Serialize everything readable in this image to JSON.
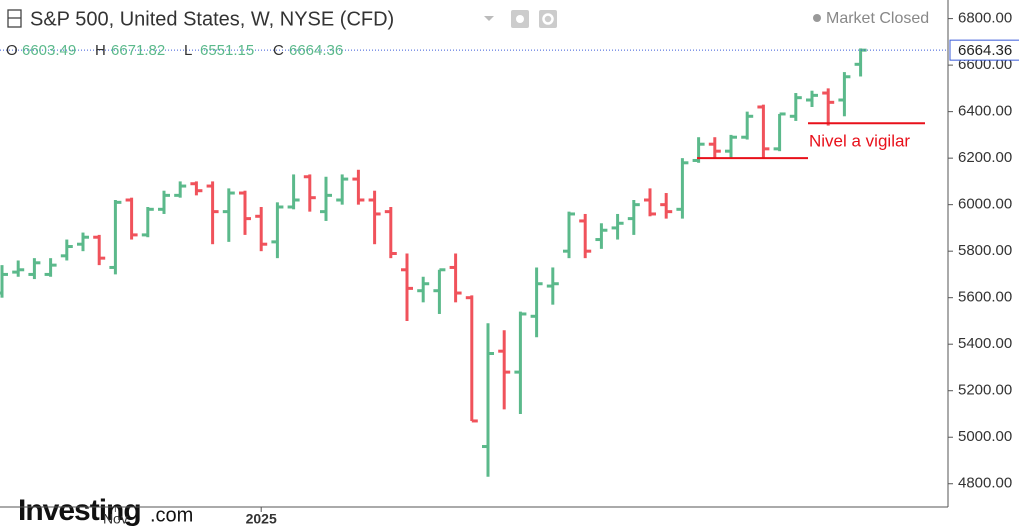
{
  "chart_data": {
    "type": "ohlc",
    "title": "S&P 500, United States, W, NYSE (CFD)",
    "status": "Market Closed",
    "ohlc_labels": [
      "O",
      "H",
      "L",
      "C"
    ],
    "logo": "Investing",
    "logo_suffix": ".com",
    "annotation": "Nivel a vigilar",
    "levels": [
      6350,
      6200
    ],
    "level_color": "#e8101a",
    "up_color": "#5bb98b",
    "down_color": "#f0525b",
    "categories": [
      null,
      null,
      null,
      null,
      null,
      null,
      null,
      "Nov",
      null,
      null,
      null,
      null,
      null,
      null,
      null,
      null,
      "2025",
      null,
      null,
      null,
      null,
      null,
      null,
      null,
      null,
      null,
      null,
      null,
      null,
      null,
      null,
      null,
      null,
      null,
      null,
      null,
      null,
      null,
      null,
      null,
      null,
      null,
      null,
      null,
      null,
      null,
      null,
      null,
      null,
      null,
      null,
      null,
      null,
      null
    ],
    "series": [
      {
        "name": "O",
        "values": [
          5620,
          5710,
          5700,
          5700,
          5780,
          5830,
          5860,
          5730,
          6020,
          5870,
          5980,
          6040,
          6090,
          6080,
          5970,
          6050,
          5950,
          5840,
          5990,
          6120,
          5970,
          6020,
          6110,
          6020,
          5970,
          5720,
          5630,
          5630,
          5730,
          5600,
          4960,
          5370,
          5280,
          5520,
          5650,
          5800,
          5930,
          5850,
          5900,
          5940,
          6020,
          6000,
          5980,
          6190,
          6260,
          6230,
          6290,
          6420,
          6240,
          6380,
          6450,
          6480,
          6450,
          6603.49
        ]
      },
      {
        "name": "H",
        "values": [
          5740,
          5760,
          5770,
          5770,
          5850,
          5880,
          5870,
          6020,
          6030,
          5990,
          6060,
          6100,
          6100,
          6100,
          6070,
          6060,
          5990,
          6010,
          6130,
          6130,
          6120,
          6130,
          6150,
          6060,
          5990,
          5790,
          5690,
          5720,
          5790,
          5610,
          5490,
          5460,
          5540,
          5730,
          5730,
          5970,
          5960,
          5920,
          5960,
          6020,
          6070,
          6050,
          6200,
          6290,
          6290,
          6300,
          6400,
          6430,
          6390,
          6480,
          6490,
          6500,
          6570,
          6671.82
        ]
      },
      {
        "name": "L",
        "values": [
          5600,
          5690,
          5680,
          5690,
          5760,
          5800,
          5740,
          5700,
          5850,
          5860,
          5960,
          6030,
          6040,
          5830,
          5840,
          5870,
          5800,
          5770,
          5980,
          5970,
          5930,
          6000,
          6000,
          5830,
          5770,
          5500,
          5580,
          5530,
          5580,
          5070,
          4830,
          5120,
          5100,
          5430,
          5570,
          5770,
          5770,
          5810,
          5850,
          5870,
          5950,
          5940,
          5940,
          6180,
          6200,
          6200,
          6280,
          6200,
          6230,
          6360,
          6420,
          6340,
          6380,
          6551.15
        ]
      },
      {
        "name": "C",
        "values": [
          5700,
          5720,
          5750,
          5740,
          5820,
          5860,
          5770,
          6010,
          5870,
          5980,
          6040,
          6080,
          6060,
          5970,
          6050,
          5940,
          5830,
          5990,
          6020,
          6030,
          6040,
          6110,
          6020,
          5960,
          5790,
          5640,
          5660,
          5720,
          5620,
          5070,
          5360,
          5280,
          5530,
          5660,
          5660,
          5960,
          5800,
          5890,
          5920,
          6000,
          5960,
          5970,
          6180,
          6260,
          6230,
          6290,
          6380,
          6240,
          6390,
          6460,
          6470,
          6440,
          6550,
          6664.36
        ]
      }
    ],
    "ylim": [
      4700,
      6880
    ],
    "yticks": [
      {
        "value": 4800,
        "label": "4800.00"
      },
      {
        "value": 5000,
        "label": "5000.00"
      },
      {
        "value": 5200,
        "label": "5200.00"
      },
      {
        "value": 5400,
        "label": "5400.00"
      },
      {
        "value": 5600,
        "label": "5600.00"
      },
      {
        "value": 5800,
        "label": "5800.00"
      },
      {
        "value": 6000,
        "label": "6000.00"
      },
      {
        "value": 6200,
        "label": "6200.00"
      },
      {
        "value": 6400,
        "label": "6400.00"
      },
      {
        "value": 6600,
        "label": "6600.00"
      },
      {
        "value": 6800,
        "label": "6800.00"
      }
    ]
  }
}
